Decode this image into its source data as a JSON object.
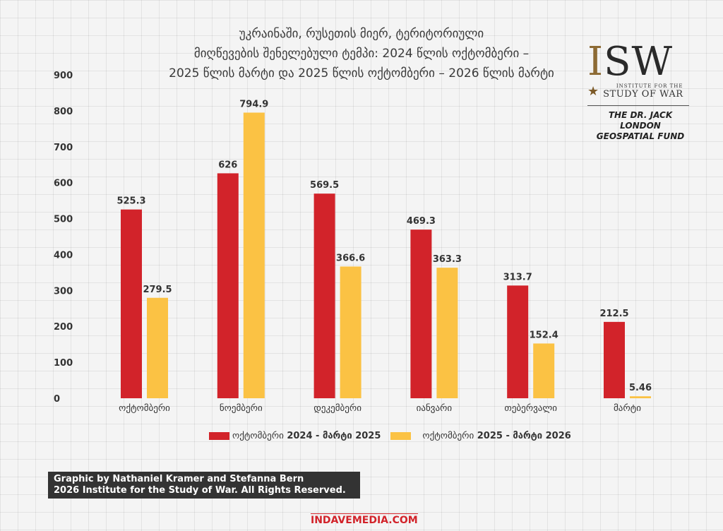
{
  "title_lines": [
    "უკრაინაში, რუსეთის მიერ, ტერიტორიული",
    "მიღწევების შენელებული ტემპი: 2024 წლის ოქტომბერი –",
    "2025 წლის მარტი და 2025 წლის ოქტომბერი – 2026 წლის მარტი"
  ],
  "logo": {
    "letters": [
      "I",
      "SW"
    ],
    "sub_small": "INSTITUTE FOR THE",
    "sub_large": "STUDY OF WAR",
    "fund_lines": [
      "THE DR. JACK LONDON",
      "GEOSPATIAL FUND"
    ]
  },
  "credit_lines": [
    "Graphic by Nathaniel Kramer and Stefanna Bern",
    "2026 Institute for the Study of War. All Rights Reserved."
  ],
  "watermark": "INDAVEMEDIA.COM",
  "legend": {
    "series1_prefix": "ოქტომბერი",
    "series1_suffix": "2024 - მარტი 2025",
    "series2_prefix": "ოქტომბერი",
    "series2_suffix": "2025 - მარტი 2026"
  },
  "colors": {
    "series1": "#d2232a",
    "series2": "#fbc244"
  },
  "chart_data": {
    "type": "bar",
    "title": "უკრაინაში, რუსეთის მიერ, ტერიტორიული მიღწევების შენელებული ტემპი: 2024 წლის ოქტომბერი – 2025 წლის მარტი და 2025 წლის ოქტომბერი – 2026 წლის მარტი",
    "categories": [
      "ოქტომბერი",
      "ნოემბერი",
      "დეკემბერი",
      "იანვარი",
      "თებერვალი",
      "მარტი"
    ],
    "series": [
      {
        "name": "ოქტომბერი 2024 - მარტი 2025",
        "values": [
          525.3,
          626,
          569.5,
          469.3,
          313.7,
          212.5
        ],
        "labels": [
          "525.3",
          "626",
          "569.5",
          "469.3",
          "313.7",
          "212.5"
        ]
      },
      {
        "name": "ოქტომბერი 2025 - მარტი 2026",
        "values": [
          279.5,
          794.9,
          366.6,
          363.3,
          152.4,
          5.46
        ],
        "labels": [
          "279.5",
          "794.9",
          "366.6",
          "363.3",
          "152.4",
          "5.46"
        ]
      }
    ],
    "yticks": [
      0,
      100,
      200,
      300,
      400,
      500,
      600,
      700,
      800,
      900
    ],
    "ylim": [
      0,
      900
    ],
    "xlabel": "",
    "ylabel": "",
    "legend_position": "bottom",
    "grid": true
  }
}
